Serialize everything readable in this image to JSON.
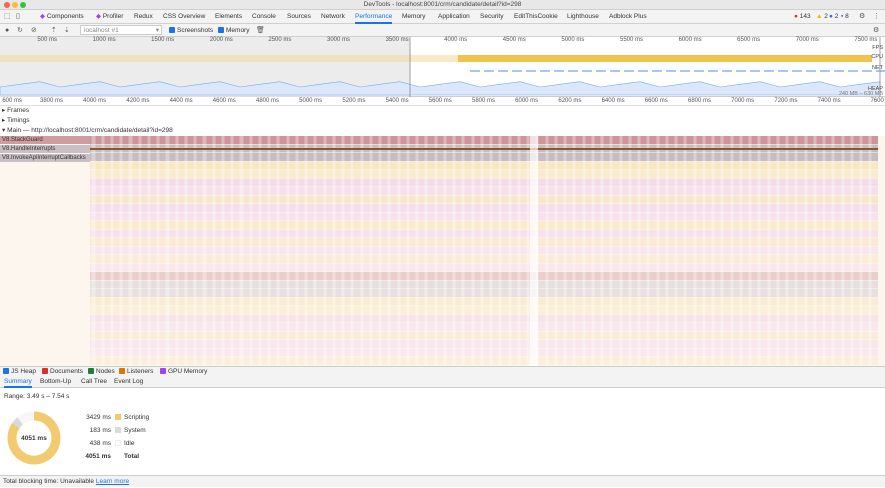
{
  "window": {
    "title": "DevTools - localhost:8001/crm/candidate/detail?id=298"
  },
  "tabs": [
    {
      "label": "Components"
    },
    {
      "label": "Profiler"
    },
    {
      "label": "Redux"
    },
    {
      "label": "CSS Overview"
    },
    {
      "label": "Elements"
    },
    {
      "label": "Console"
    },
    {
      "label": "Sources"
    },
    {
      "label": "Network"
    },
    {
      "label": "Performance"
    },
    {
      "label": "Memory"
    },
    {
      "label": "Application"
    },
    {
      "label": "Security"
    },
    {
      "label": "EditThisCookie"
    },
    {
      "label": "Lighthouse"
    },
    {
      "label": "Adblock Plus"
    }
  ],
  "badges": {
    "errors": "143",
    "warnings": "2",
    "info": "2",
    "messages": "8"
  },
  "toolbar": {
    "profile_select": "localhost #1",
    "screenshots_label": "Screenshots",
    "memory_label": "Memory"
  },
  "overview": {
    "ticks": [
      "500 ms",
      "1000 ms",
      "1500 ms",
      "2000 ms",
      "2500 ms",
      "3000 ms",
      "3500 ms",
      "4000 ms",
      "4500 ms",
      "5000 ms",
      "5500 ms",
      "6000 ms",
      "6500 ms",
      "7000 ms",
      "7500 ms"
    ],
    "fps_label": "FPS",
    "cpu_label": "CPU",
    "net_label": "NET",
    "heap_label": "HEAP",
    "heap_range": "240 MB – 630 MB"
  },
  "ruler": {
    "ticks": [
      "600 ms",
      "3800 ms",
      "4000 ms",
      "4200 ms",
      "4400 ms",
      "4600 ms",
      "4800 ms",
      "5000 ms",
      "5200 ms",
      "5400 ms",
      "5600 ms",
      "5800 ms",
      "6000 ms",
      "6200 ms",
      "6400 ms",
      "6600 ms",
      "6800 ms",
      "7000 ms",
      "7200 ms",
      "7400 ms",
      "7600"
    ]
  },
  "tracks": {
    "frames": "Frames",
    "timings": "Timings",
    "main": "Main — http://localhost:8001/crm/candidate/detail?id=298"
  },
  "flame_labels": [
    "V8.StackGuard",
    "V8.HandleInterrupts",
    "V8.InvokeApiInterruptCallbacks"
  ],
  "memory_checkboxes": [
    {
      "label": "JS Heap",
      "color": "#1a73e8"
    },
    {
      "label": "Documents",
      "color": "#d93025"
    },
    {
      "label": "Nodes",
      "color": "#188038"
    },
    {
      "label": "Listeners",
      "color": "#e37400"
    },
    {
      "label": "GPU Memory",
      "color": "#a142f4"
    }
  ],
  "subtabs": [
    "Summary",
    "Bottom-Up",
    "Call Tree",
    "Event Log"
  ],
  "summary": {
    "range": "Range: 3.49 s – 7.54 s",
    "donut_total": "4051 ms",
    "rows": [
      {
        "ms": "3429 ms",
        "label": "Scripting",
        "color": "#f2cb70"
      },
      {
        "ms": "183 ms",
        "label": "System",
        "color": "#dadada"
      },
      {
        "ms": "438 ms",
        "label": "Idle",
        "color": "#ffffff"
      },
      {
        "ms": "4051 ms",
        "label": "Total",
        "color": ""
      }
    ],
    "fractions": [
      0.8465,
      0.0452,
      0.1081
    ]
  },
  "status": {
    "text": "Total blocking time: Unavailable",
    "link": "Learn more"
  }
}
